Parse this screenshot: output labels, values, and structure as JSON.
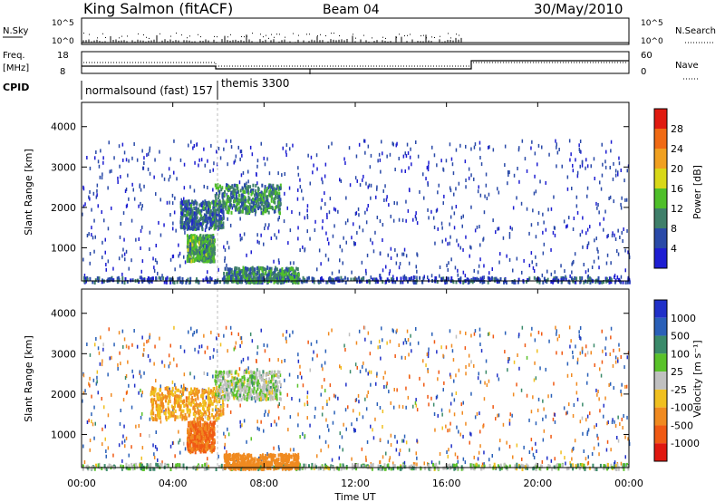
{
  "header": {
    "title": "King Salmon (fitACF)",
    "beam": "Beam 04",
    "date": "30/May/2010"
  },
  "strip": {
    "nsky_label": "N.Sky",
    "nsearch_label": "N.Search",
    "nsky_ticks": [
      "10^5",
      "10^0"
    ],
    "freq_label_1": "Freq.",
    "freq_label_2": "[MHz]",
    "freq_ticks": [
      "18",
      "8"
    ],
    "nave_label": "Nave",
    "nave_ticks": [
      "60",
      "0"
    ],
    "cpid_label": "CPID",
    "cpid_segments": [
      {
        "label": "normalsound (fast) 157",
        "start_h": 0,
        "end_h": 6
      },
      {
        "label": "themis 3300",
        "start_h": 6,
        "end_h": 24
      }
    ]
  },
  "axes": {
    "x_label": "Time UT",
    "x_ticks": [
      "00:00",
      "04:00",
      "08:00",
      "12:00",
      "16:00",
      "20:00",
      "00:00"
    ],
    "y_label": "Slant Range [km]",
    "y_ticks": [
      "1000",
      "2000",
      "3000",
      "4000"
    ]
  },
  "power_scale": {
    "label": "Power [dB]",
    "ticks": [
      "4",
      "8",
      "12",
      "16",
      "20",
      "24",
      "28"
    ],
    "colors": [
      "#1e1ed2",
      "#2a4aa8",
      "#3f7f6a",
      "#4fbf2a",
      "#d8d818",
      "#f0a020",
      "#f06a14",
      "#e01a10"
    ]
  },
  "velocity_scale": {
    "label": "Velocity [m s⁻¹]",
    "ticks": [
      "1000",
      "500",
      "100",
      "25",
      "-25",
      "-100",
      "-500",
      "-1000"
    ],
    "colors": [
      "#2030c8",
      "#2a60b8",
      "#3a8a6a",
      "#5ac22a",
      "#c0c0c0",
      "#f0c020",
      "#f08a20",
      "#f05a14",
      "#e01810"
    ]
  },
  "chart_data": [
    {
      "type": "heatmap",
      "title": "Power [dB]",
      "xlabel": "Time UT",
      "ylabel": "Slant Range [km]",
      "xlim": [
        "00:00",
        "24:00"
      ],
      "ylim": [
        180,
        4600
      ],
      "regions": [
        {
          "time_h": [
            0.0,
            24.0
          ],
          "range_km": [
            180,
            300
          ],
          "power_db": 6
        },
        {
          "time_h": [
            4.3,
            6.2
          ],
          "range_km": [
            1500,
            2200
          ],
          "power_db": 8
        },
        {
          "time_h": [
            5.8,
            8.7
          ],
          "range_km": [
            1900,
            2600
          ],
          "power_db": 10
        },
        {
          "time_h": [
            4.6,
            5.8
          ],
          "range_km": [
            700,
            1350
          ],
          "power_db": 12
        },
        {
          "time_h": [
            6.2,
            9.5
          ],
          "range_km": [
            180,
            550
          ],
          "power_db": 10
        }
      ]
    },
    {
      "type": "heatmap",
      "title": "Velocity [m s-1]",
      "xlabel": "Time UT",
      "ylabel": "Slant Range [km]",
      "xlim": [
        "00:00",
        "24:00"
      ],
      "ylim": [
        180,
        4600
      ],
      "regions": [
        {
          "time_h": [
            0.0,
            24.0
          ],
          "range_km": [
            180,
            300
          ],
          "velocity_ms": 0
        },
        {
          "time_h": [
            3.0,
            6.2
          ],
          "range_km": [
            1400,
            2200
          ],
          "velocity_ms": -100
        },
        {
          "time_h": [
            5.8,
            8.7
          ],
          "range_km": [
            1900,
            2600
          ],
          "velocity_ms": 0
        },
        {
          "time_h": [
            4.6,
            5.8
          ],
          "range_km": [
            600,
            1350
          ],
          "velocity_ms": -500
        },
        {
          "time_h": [
            6.2,
            9.5
          ],
          "range_km": [
            180,
            550
          ],
          "velocity_ms": -300
        }
      ]
    }
  ]
}
